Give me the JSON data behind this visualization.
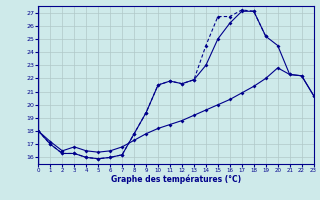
{
  "xlabel": "Graphe des températures (°C)",
  "background_color": "#ceeaea",
  "line_color": "#00008b",
  "grid_color": "#b0c8c8",
  "ylim": [
    15.5,
    27.5
  ],
  "xlim": [
    0,
    23
  ],
  "yticks": [
    16,
    17,
    18,
    19,
    20,
    21,
    22,
    23,
    24,
    25,
    26,
    27
  ],
  "xticks": [
    0,
    1,
    2,
    3,
    4,
    5,
    6,
    7,
    8,
    9,
    10,
    11,
    12,
    13,
    14,
    15,
    16,
    17,
    18,
    19,
    20,
    21,
    22,
    23
  ],
  "line1_x": [
    0,
    1,
    2,
    3,
    4,
    5,
    6,
    7,
    8,
    9,
    10,
    11,
    12,
    13,
    14,
    15,
    16,
    17,
    18,
    19,
    20,
    21,
    22,
    23
  ],
  "line1_y": [
    18.0,
    17.0,
    16.3,
    16.3,
    16.0,
    15.9,
    16.0,
    16.2,
    17.8,
    19.4,
    21.5,
    21.8,
    21.6,
    21.9,
    24.5,
    26.7,
    26.7,
    27.2,
    27.1,
    25.2,
    null,
    null,
    null,
    null
  ],
  "line2_x": [
    0,
    1,
    2,
    3,
    4,
    5,
    6,
    7,
    8,
    9,
    10,
    11,
    12,
    13,
    14,
    15,
    16,
    17,
    18,
    19,
    20,
    21,
    22,
    23
  ],
  "line2_y": [
    18.0,
    17.0,
    16.3,
    16.3,
    16.0,
    15.9,
    16.0,
    16.2,
    17.8,
    19.4,
    21.5,
    21.8,
    21.6,
    21.9,
    23.0,
    25.0,
    26.2,
    27.1,
    27.1,
    25.2,
    24.5,
    22.3,
    22.2,
    20.7
  ],
  "line3_x": [
    0,
    1,
    2,
    3,
    4,
    5,
    6,
    7,
    8,
    9,
    10,
    11,
    12,
    13,
    14,
    15,
    16,
    17,
    18,
    19,
    20,
    21,
    22,
    23
  ],
  "line3_y": [
    18.0,
    17.2,
    16.5,
    16.8,
    16.5,
    16.4,
    16.5,
    16.8,
    17.3,
    17.8,
    18.2,
    18.5,
    18.8,
    19.2,
    19.6,
    20.0,
    20.4,
    20.9,
    21.4,
    22.0,
    22.8,
    22.3,
    22.2,
    20.7
  ]
}
